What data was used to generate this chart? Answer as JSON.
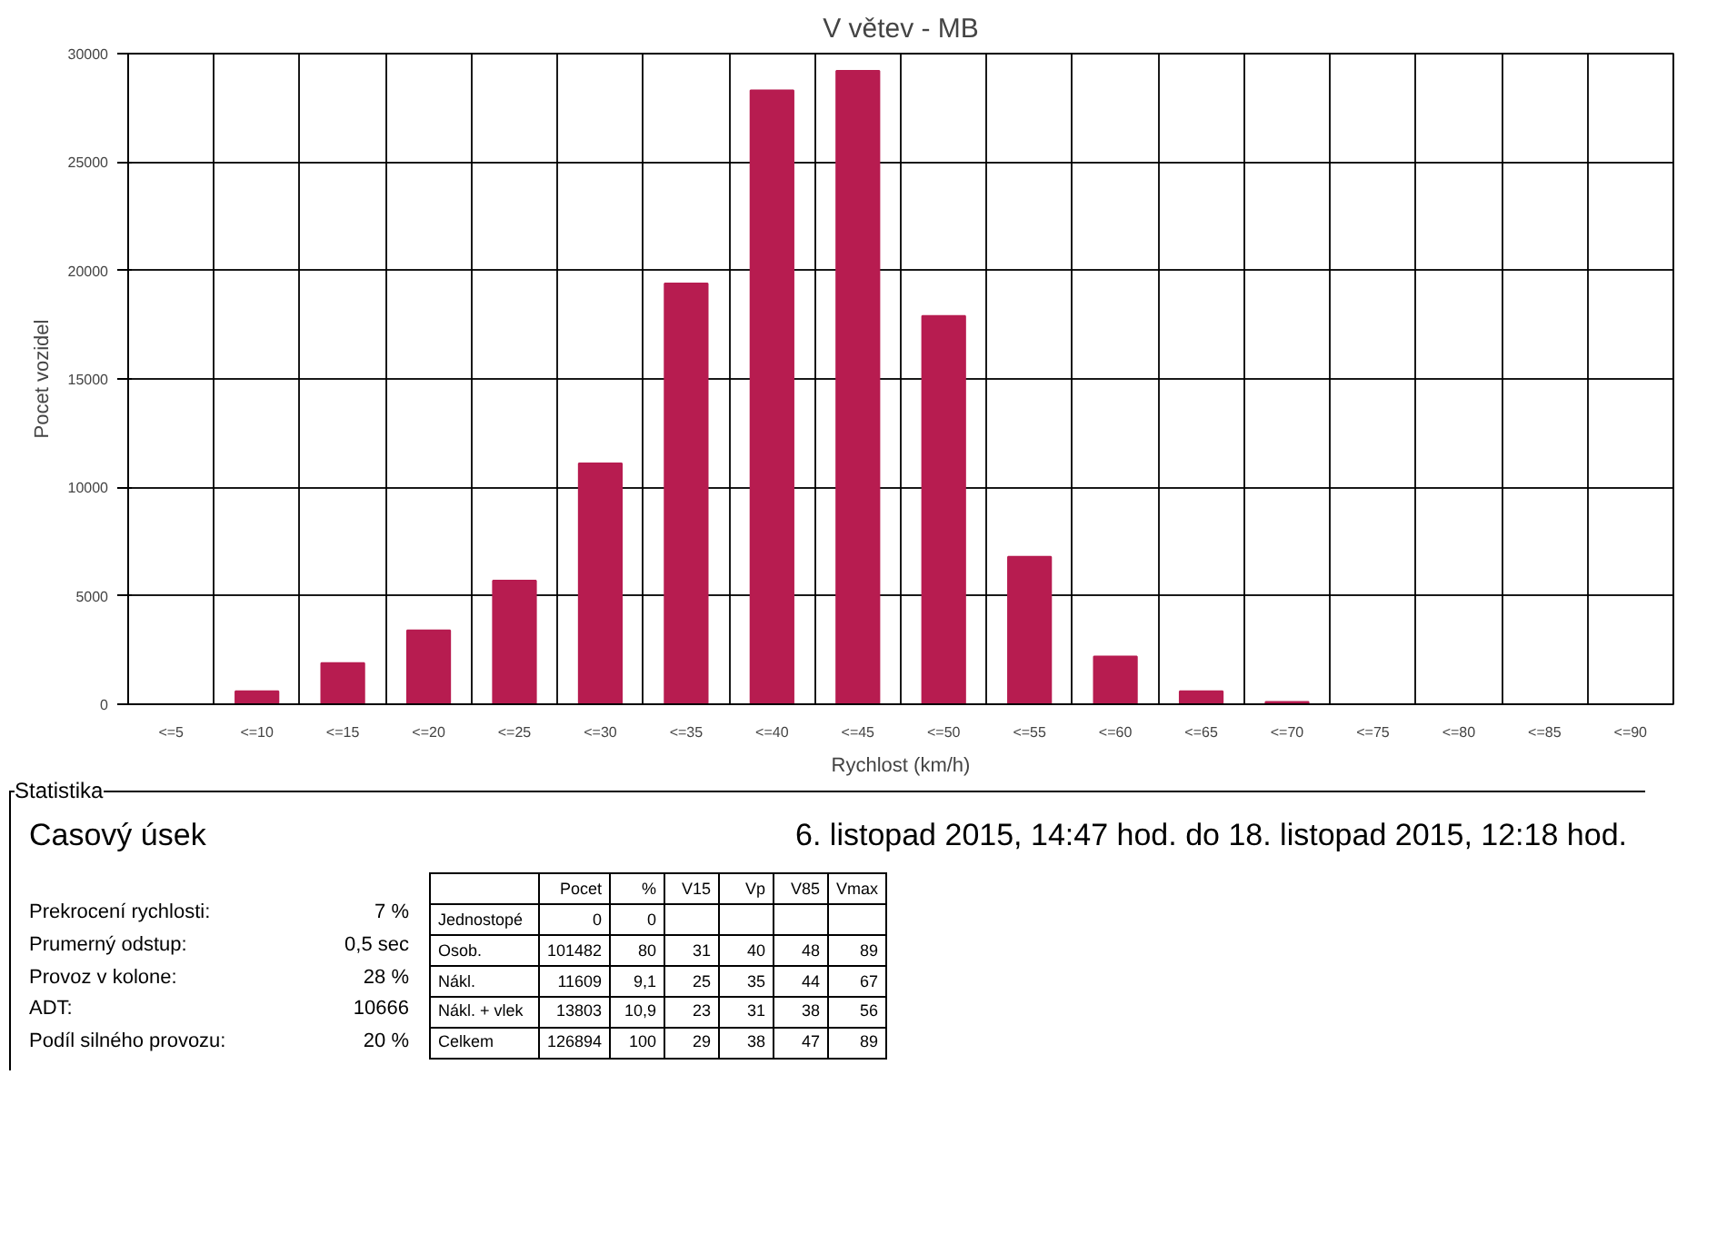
{
  "chart_data": {
    "type": "bar",
    "title": "V větev - MB",
    "xlabel": "Rychlost (km/h)",
    "ylabel": "Pocet vozidel",
    "categories": [
      "<=5",
      "<=10",
      "<=15",
      "<=20",
      "<=25",
      "<=30",
      "<=35",
      "<=40",
      "<=45",
      "<=50",
      "<=55",
      "<=60",
      "<=65",
      "<=70",
      "<=75",
      "<=80",
      "<=85",
      "<=90"
    ],
    "values": [
      0,
      600,
      1900,
      3400,
      5700,
      11100,
      19400,
      28300,
      29200,
      17900,
      6800,
      2200,
      600,
      100,
      0,
      0,
      0,
      0
    ],
    "color": "#b71c50",
    "ylim": [
      0,
      30000
    ],
    "yticks": [
      0,
      5000,
      10000,
      15000,
      20000,
      25000,
      30000
    ],
    "grid": true,
    "annotations": [
      "Statistika",
      "Casový úsek",
      "6. listopad 2015, 14:47 hod. do 18. listopad 2015, 12:18 hod.",
      "Prekrocení rychlosti:\t7 %",
      "Prumerný odstup:\t0,5 sec",
      "Provoz v kolone:\t28 %",
      "ADT:\t10666",
      "Podíl silného provozu:\t20 %",
      "\tPocet\t%\tV15\tVp\tV85\tVmax",
      "Jednostopé\t0\t0\t\t\t\t",
      "Osob.\t101482\t80\t31\t40\t48\t89",
      "Nákl.\t11609\t9,1\t25\t35\t44\t67",
      "Nákl. + vlek\t13803\t10,9\t23\t31\t38\t56",
      "Celkem\t126894\t100\t29\t38\t47\t89"
    ]
  }
}
